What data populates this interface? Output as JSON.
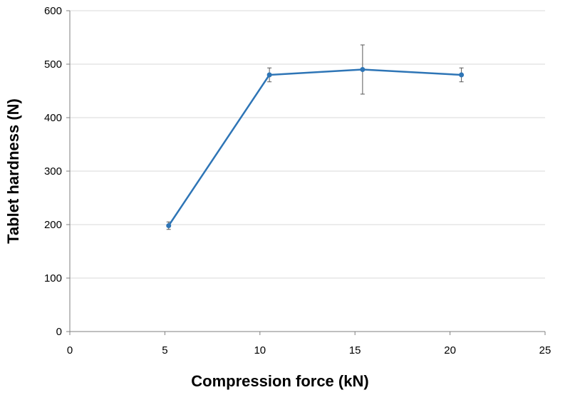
{
  "chart_data": {
    "type": "line",
    "title": "",
    "xlabel": "Compression force (kN)",
    "ylabel": "Tablet hardness (N)",
    "xlim": [
      0,
      25
    ],
    "ylim": [
      0,
      600
    ],
    "xticks": [
      0,
      5,
      10,
      15,
      20,
      25
    ],
    "yticks": [
      0,
      100,
      200,
      300,
      400,
      500,
      600
    ],
    "grid": "horizontal",
    "legend": "none",
    "series": [
      {
        "color": "#2e75b6",
        "marker": "circle",
        "points": [
          {
            "x": 5.2,
            "y": 198,
            "err": 7
          },
          {
            "x": 10.5,
            "y": 480,
            "err": 13
          },
          {
            "x": 15.4,
            "y": 490,
            "err": 46
          },
          {
            "x": 20.6,
            "y": 480,
            "err": 13
          }
        ]
      }
    ]
  }
}
